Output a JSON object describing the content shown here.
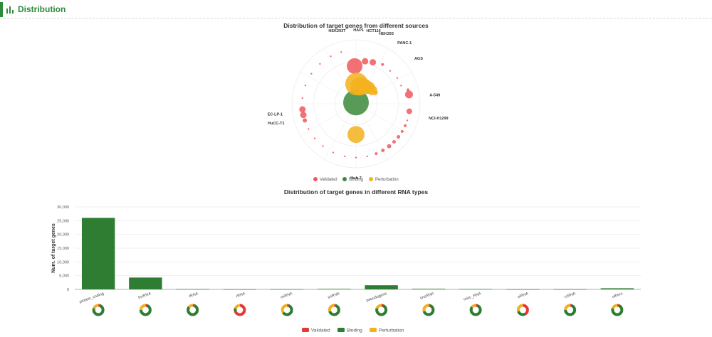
{
  "section": {
    "title": "Distribution",
    "icon": "bar-chart-icon",
    "accent": "#2e8b3a"
  },
  "chart_data": [
    {
      "type": "scatter",
      "subtype": "polar-bubble",
      "title": "Distribution of target genes from different sources",
      "legend": {
        "position": "bottom",
        "items": [
          "Validated",
          "Binding",
          "Perturbation"
        ]
      },
      "colors": {
        "Validated": "#f0585c",
        "Binding": "#3b8a3b",
        "Perturbation": "#f3b21d"
      },
      "angle_labels": [
        "HEK293T",
        "HAP1",
        "HCT116",
        "HEK293",
        "PANC-1",
        "AGS",
        "A-549",
        "NCI-H1299",
        "Huh-7",
        "EC-LP-1",
        "HuCC-T1"
      ],
      "points": [
        {
          "series": "Validated",
          "angle": 358,
          "radius": 0.59,
          "size": 11
        },
        {
          "series": "Validated",
          "angle": 12,
          "radius": 0.68,
          "size": 4.5
        },
        {
          "series": "Validated",
          "angle": 22,
          "radius": 0.7,
          "size": 4.5
        },
        {
          "series": "Validated",
          "angle": 34,
          "radius": 0.74,
          "size": 2
        },
        {
          "series": "Validated",
          "angle": 46,
          "radius": 0.74,
          "size": 1.2
        },
        {
          "series": "Validated",
          "angle": 58,
          "radius": 0.76,
          "size": 1.2
        },
        {
          "series": "Validated",
          "angle": 68,
          "radius": 0.76,
          "size": 1.2
        },
        {
          "series": "Validated",
          "angle": 75,
          "radius": 0.84,
          "size": 2
        },
        {
          "series": "Validated",
          "angle": 80,
          "radius": 0.84,
          "size": 5.5
        },
        {
          "series": "Validated",
          "angle": 98,
          "radius": 0.84,
          "size": 4
        },
        {
          "series": "Validated",
          "angle": 108,
          "radius": 0.84,
          "size": 1.2
        },
        {
          "series": "Validated",
          "angle": 114,
          "radius": 0.84,
          "size": 2
        },
        {
          "series": "Validated",
          "angle": 121,
          "radius": 0.84,
          "size": 2
        },
        {
          "series": "Validated",
          "angle": 128,
          "radius": 0.84,
          "size": 2.5
        },
        {
          "series": "Validated",
          "angle": 135,
          "radius": 0.84,
          "size": 2.5
        },
        {
          "series": "Validated",
          "angle": 142,
          "radius": 0.84,
          "size": 3
        },
        {
          "series": "Validated",
          "angle": 150,
          "radius": 0.84,
          "size": 2.5
        },
        {
          "series": "Validated",
          "angle": 158,
          "radius": 0.84,
          "size": 2
        },
        {
          "series": "Validated",
          "angle": 168,
          "radius": 0.84,
          "size": 1.2
        },
        {
          "series": "Validated",
          "angle": 180,
          "radius": 0.84,
          "size": 1.2
        },
        {
          "series": "Validated",
          "angle": 192,
          "radius": 0.84,
          "size": 1.2
        },
        {
          "series": "Validated",
          "angle": 205,
          "radius": 0.84,
          "size": 1.2
        },
        {
          "series": "Validated",
          "angle": 218,
          "radius": 0.84,
          "size": 1.2
        },
        {
          "series": "Validated",
          "angle": 230,
          "radius": 0.84,
          "size": 1.2
        },
        {
          "series": "Validated",
          "angle": 242,
          "radius": 0.84,
          "size": 1.2
        },
        {
          "series": "Validated",
          "angle": 252,
          "radius": 0.84,
          "size": 3
        },
        {
          "series": "Validated",
          "angle": 258,
          "radius": 0.84,
          "size": 4.5
        },
        {
          "series": "Validated",
          "angle": 264,
          "radius": 0.84,
          "size": 4.5
        },
        {
          "series": "Validated",
          "angle": 276,
          "radius": 0.84,
          "size": 1.2
        },
        {
          "series": "Validated",
          "angle": 290,
          "radius": 0.84,
          "size": 1.2
        },
        {
          "series": "Validated",
          "angle": 304,
          "radius": 0.84,
          "size": 1.2
        },
        {
          "series": "Validated",
          "angle": 318,
          "radius": 0.84,
          "size": 1.2
        },
        {
          "series": "Validated",
          "angle": 332,
          "radius": 0.84,
          "size": 1.2
        },
        {
          "series": "Validated",
          "angle": 344,
          "radius": 0.84,
          "size": 1.2
        },
        {
          "series": "Binding",
          "angle": 0,
          "radius": 0.02,
          "size": 18
        },
        {
          "series": "Perturbation",
          "angle": 2,
          "radius": 0.31,
          "size": 16
        },
        {
          "series": "Perturbation",
          "angle": 12,
          "radius": 0.28,
          "size": 13
        },
        {
          "series": "Perturbation",
          "angle": 25,
          "radius": 0.3,
          "size": 11
        },
        {
          "series": "Perturbation",
          "angle": 38,
          "radius": 0.32,
          "size": 9
        },
        {
          "series": "Perturbation",
          "angle": 50,
          "radius": 0.33,
          "size": 7
        },
        {
          "series": "Perturbation",
          "angle": 60,
          "radius": 0.35,
          "size": 3.5
        },
        {
          "series": "Perturbation",
          "angle": 180,
          "radius": 0.48,
          "size": 12
        }
      ]
    },
    {
      "type": "bar",
      "title": "Distribution of target genes in different RNA types",
      "xlabel": "",
      "ylabel": "Num. of target genes",
      "ylim": [
        0,
        30000
      ],
      "yticks": [
        "0",
        "5,000",
        "10,000",
        "15,000",
        "20,000",
        "25,000",
        "30,000"
      ],
      "grid": true,
      "categories": [
        "protein_coding",
        "lncRNA",
        "tRNA",
        "rRNA",
        "miRNA",
        "snRNA",
        "pseudogene",
        "snoRNA",
        "misc_RNA",
        "siRNA",
        "rcRNA",
        "others"
      ],
      "values": [
        26000,
        4300,
        80,
        40,
        60,
        180,
        1500,
        200,
        120,
        40,
        50,
        400
      ],
      "bar_color": "#2e7d32",
      "donuts": [
        {
          "category": "protein_coding",
          "shares": [
            0.05,
            0.75,
            0.2
          ]
        },
        {
          "category": "lncRNA",
          "shares": [
            0.05,
            0.7,
            0.25
          ]
        },
        {
          "category": "tRNA",
          "shares": [
            0.05,
            0.8,
            0.15
          ]
        },
        {
          "category": "rRNA",
          "shares": [
            0.7,
            0.1,
            0.2
          ]
        },
        {
          "category": "miRNA",
          "shares": [
            0.05,
            0.6,
            0.35
          ]
        },
        {
          "category": "snRNA",
          "shares": [
            0.05,
            0.65,
            0.3
          ]
        },
        {
          "category": "pseudogene",
          "shares": [
            0.05,
            0.75,
            0.2
          ]
        },
        {
          "category": "snoRNA",
          "shares": [
            0.05,
            0.65,
            0.3
          ]
        },
        {
          "category": "misc_RNA",
          "shares": [
            0.05,
            0.8,
            0.15
          ]
        },
        {
          "category": "siRNA",
          "shares": [
            0.4,
            0.3,
            0.3
          ]
        },
        {
          "category": "rcRNA",
          "shares": [
            0.05,
            0.7,
            0.25
          ]
        },
        {
          "category": "others",
          "shares": [
            0.05,
            0.75,
            0.2
          ]
        }
      ],
      "legend": {
        "position": "bottom",
        "items": [
          "Validated",
          "Binding",
          "Perturbation"
        ]
      },
      "colors": {
        "Validated": "#e53935",
        "Binding": "#2e7d32",
        "Perturbation": "#f2b021"
      }
    }
  ]
}
